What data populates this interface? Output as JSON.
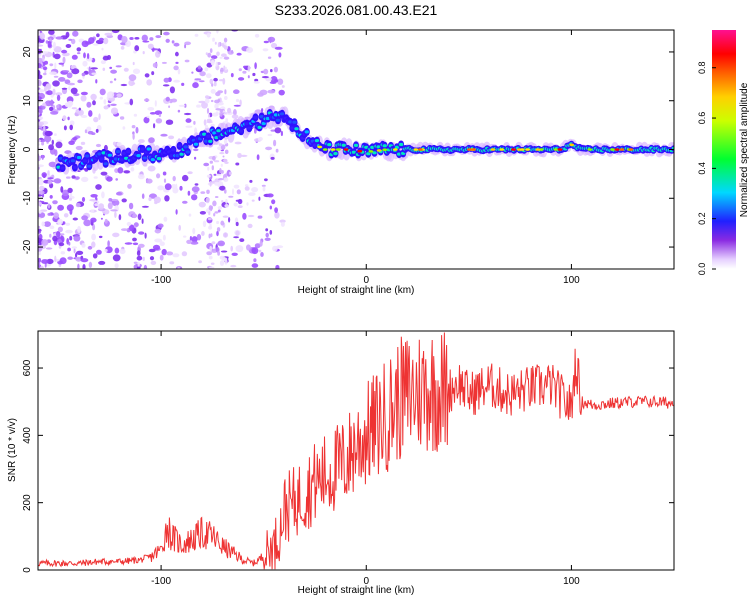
{
  "title": "S233.2026.081.00.43.E21",
  "chart_data": [
    {
      "type": "heatmap",
      "xlabel": "Height of straight line (km)",
      "ylabel": "Frequency (Hz)",
      "xlim": [
        -160,
        150
      ],
      "ylim": [
        -24.5,
        24.5
      ],
      "xticks": [
        -100,
        0,
        100
      ],
      "yticks": [
        -20,
        -10,
        0,
        10,
        20
      ],
      "ridge": {
        "x": [
          -150,
          -140,
          -130,
          -120,
          -110,
          -100,
          -90,
          -80,
          -70,
          -60,
          -50,
          -45,
          -40,
          -35,
          -30,
          -25,
          -20,
          -10,
          0,
          10,
          20,
          50,
          80,
          95,
          100,
          105,
          120,
          150
        ],
        "y": [
          -3,
          -2.5,
          -2,
          -1.5,
          -1,
          -1,
          0,
          2,
          3.5,
          4.5,
          6,
          7,
          7,
          5,
          3,
          1,
          0,
          0,
          -0.5,
          0,
          0,
          0,
          0,
          0,
          1,
          0,
          0,
          0
        ]
      },
      "colorbar": {
        "label": "Normalized spectral amplitude",
        "range": [
          0.0,
          0.95
        ],
        "ticks": [
          "0.0",
          "0.2",
          "0.4",
          "0.6",
          "0.8"
        ]
      }
    },
    {
      "type": "line",
      "xlabel": "Height of straight line (km)",
      "ylabel": "SNR (10 * v/v)",
      "xlim": [
        -160,
        150
      ],
      "ylim": [
        0,
        710
      ],
      "xticks": [
        -100,
        0,
        100
      ],
      "yticks": [
        0,
        200,
        400,
        600
      ],
      "color": "#ee3333",
      "series": [
        {
          "name": "SNR",
          "x": [
            -160,
            -150,
            -140,
            -130,
            -120,
            -110,
            -105,
            -100,
            -97,
            -95,
            -90,
            -85,
            -80,
            -75,
            -70,
            -65,
            -60,
            -55,
            -50,
            -45,
            -42,
            -40,
            -35,
            -30,
            -25,
            -20,
            -15,
            -10,
            -5,
            0,
            5,
            10,
            15,
            20,
            25,
            30,
            40,
            45,
            50,
            60,
            70,
            80,
            90,
            100,
            102,
            105,
            110,
            120,
            130,
            140,
            150
          ],
          "y": [
            20,
            20,
            20,
            25,
            25,
            30,
            40,
            60,
            130,
            100,
            75,
            90,
            110,
            100,
            70,
            50,
            30,
            20,
            40,
            70,
            120,
            180,
            200,
            230,
            260,
            280,
            300,
            320,
            370,
            400,
            430,
            460,
            500,
            520,
            530,
            540,
            530,
            560,
            520,
            550,
            520,
            540,
            550,
            480,
            620,
            500,
            490,
            495,
            500,
            500,
            495
          ]
        }
      ]
    }
  ]
}
